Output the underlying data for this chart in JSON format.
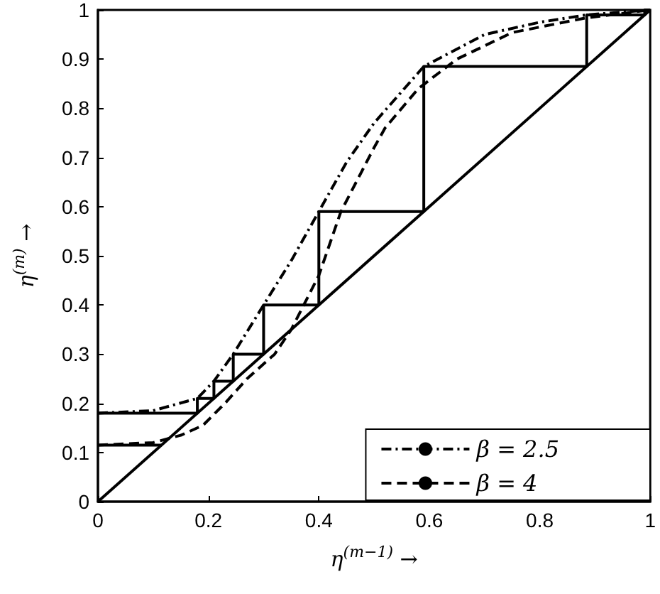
{
  "chart_data": {
    "type": "line",
    "xlabel": "η$^{(m−1)}$ →",
    "ylabel": "η$^{(m)}$ →",
    "xlim": [
      0,
      1
    ],
    "xticks": [
      0,
      0.2,
      0.4,
      0.6,
      0.8,
      1
    ],
    "ylim": [
      0,
      1
    ],
    "yticks": [
      0,
      0.1,
      0.2,
      0.3,
      0.4,
      0.5,
      0.6,
      0.7,
      0.8,
      0.9,
      1
    ],
    "grid": false,
    "legend": "bottom right",
    "marker": "none",
    "series": [
      {
        "color": "#000000",
        "line_style": "solid",
        "x": [
          0,
          1
        ],
        "values": [
          0,
          1
        ]
      },
      {
        "color": "#000000",
        "line_style": "solid",
        "x": [
          0,
          0.18,
          0.18,
          0.21,
          0.21,
          0.245,
          0.245,
          0.3,
          0.3,
          0.4,
          0.4,
          0.59,
          0.59,
          0.885,
          0.885,
          0.99,
          0.99,
          1
        ],
        "values": [
          0.18,
          0.18,
          0.21,
          0.21,
          0.245,
          0.245,
          0.3,
          0.3,
          0.4,
          0.4,
          0.59,
          0.59,
          0.885,
          0.885,
          0.99,
          0.99,
          1,
          1
        ]
      },
      {
        "color": "#000000",
        "line_style": "solid",
        "x": [
          0,
          0.115
        ],
        "values": [
          0.115,
          0.115
        ]
      },
      {
        "name": "β = 2.5",
        "color": "#000000",
        "line_style": "dashdot",
        "x": [
          0,
          0.1,
          0.18,
          0.21,
          0.245,
          0.3,
          0.35,
          0.4,
          0.45,
          0.5,
          0.59,
          0.7,
          0.8,
          0.885,
          1
        ],
        "values": [
          0.18,
          0.185,
          0.21,
          0.245,
          0.3,
          0.4,
          0.49,
          0.59,
          0.69,
          0.77,
          0.885,
          0.95,
          0.975,
          0.99,
          1
        ]
      },
      {
        "name": "β = 4",
        "color": "#000000",
        "line_style": "dashed",
        "x": [
          0,
          0.1,
          0.15,
          0.19,
          0.23,
          0.27,
          0.32,
          0.35,
          0.4,
          0.44,
          0.5,
          0.52,
          0.58,
          0.65,
          0.75,
          0.88,
          1
        ],
        "values": [
          0.115,
          0.12,
          0.135,
          0.155,
          0.2,
          0.25,
          0.3,
          0.35,
          0.46,
          0.59,
          0.72,
          0.76,
          0.84,
          0.9,
          0.954,
          0.983,
          1
        ]
      }
    ]
  }
}
